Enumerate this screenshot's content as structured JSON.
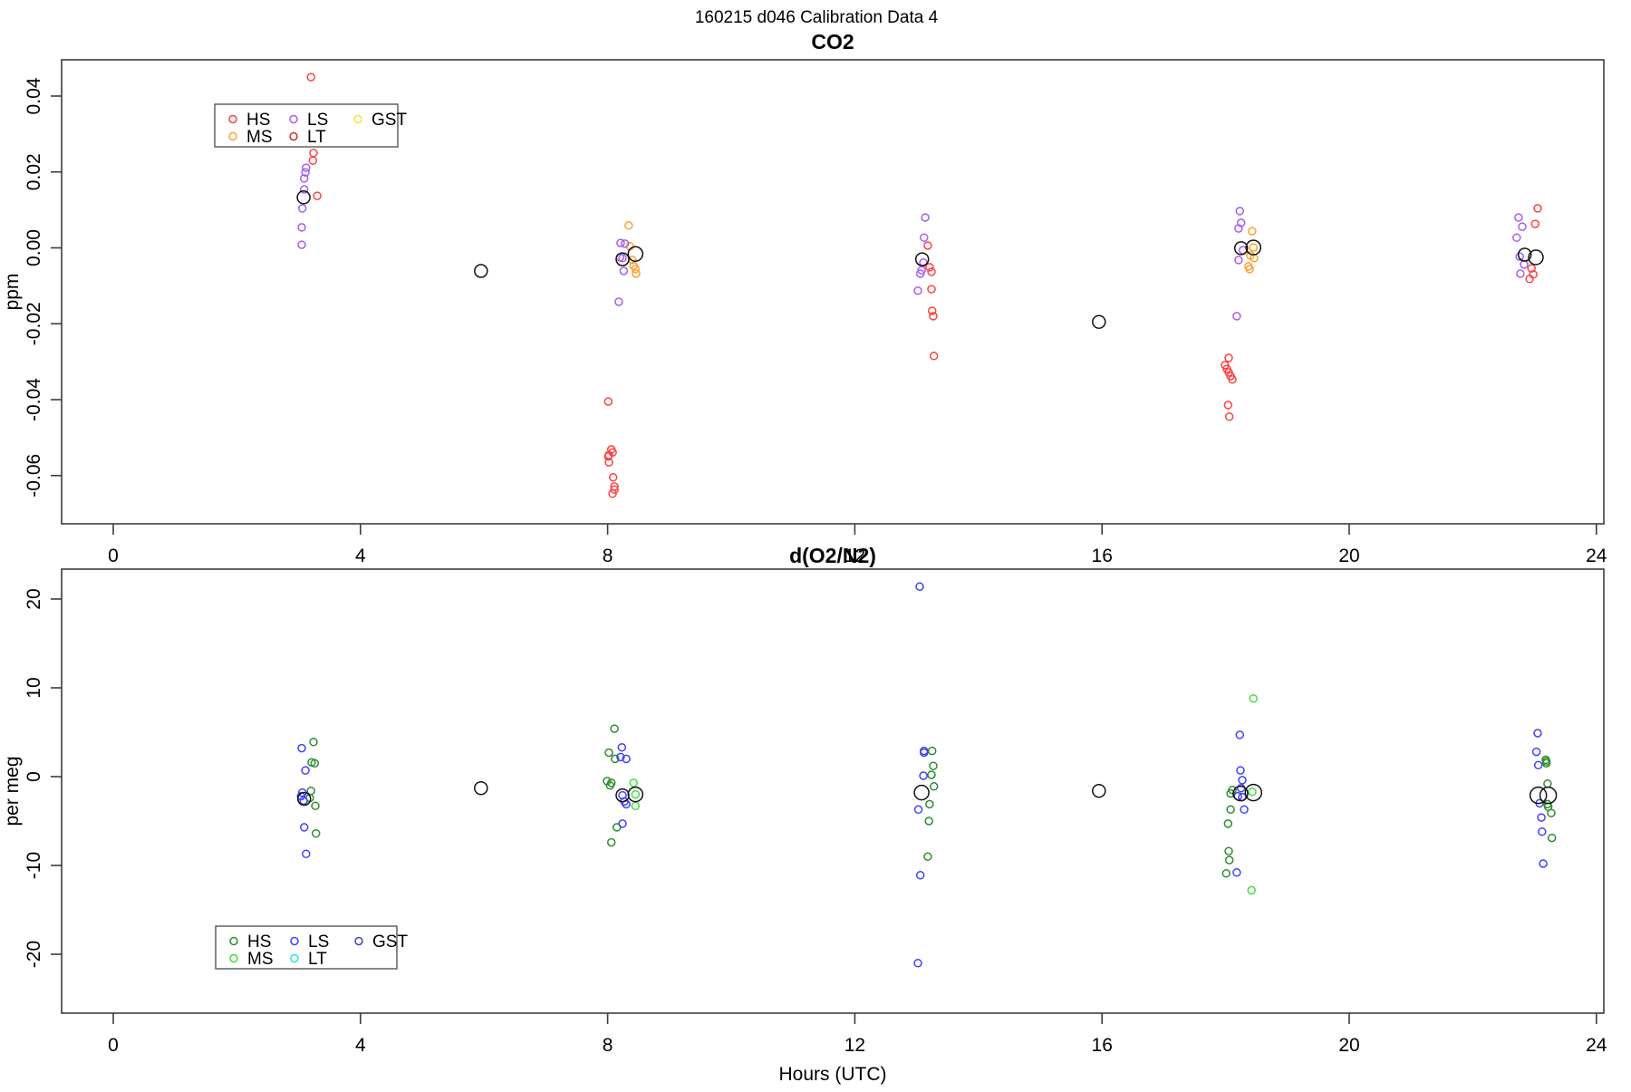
{
  "figure": {
    "title": "160215   d046   Calibration Data 4",
    "xlabel": "Hours (UTC)"
  },
  "x_axis": {
    "ticks": [
      {
        "value": 0,
        "label": "0"
      },
      {
        "value": 4,
        "label": "4"
      },
      {
        "value": 8,
        "label": "8"
      },
      {
        "value": 12,
        "label": "12"
      },
      {
        "value": 16,
        "label": "16"
      },
      {
        "value": 20,
        "label": "20"
      },
      {
        "value": 24,
        "label": "24"
      }
    ]
  },
  "chart_data": [
    {
      "type": "scatter",
      "title": "CO2",
      "ylabel": "ppm",
      "xlabel": "Hours (UTC)",
      "xlim": [
        -1,
        25
      ],
      "ylim": [
        -0.072,
        0.047
      ],
      "grid": false,
      "y_ticks": [
        {
          "value": 0.04,
          "label": "0.04"
        },
        {
          "value": 0.02,
          "label": "0.02"
        },
        {
          "value": 0.0,
          "label": "0.00"
        },
        {
          "value": -0.02,
          "label": "-0.02"
        },
        {
          "value": -0.04,
          "label": "-0.04"
        },
        {
          "value": -0.06,
          "label": "-0.06"
        }
      ],
      "legend": {
        "position": "top-left",
        "items": [
          {
            "name": "HS",
            "color": "#ff4040"
          },
          {
            "name": "MS",
            "color": "#ffa030"
          },
          {
            "name": "LS",
            "color": "#a85cf0"
          },
          {
            "name": "LT",
            "color": "#c23030"
          },
          {
            "name": "GST",
            "color": "#f2e43c"
          }
        ]
      },
      "series": [
        {
          "name": "HS",
          "color": "#ff4040",
          "points": [
            [
              3.2,
              0.045
            ],
            [
              3.24,
              0.025
            ],
            [
              3.23,
              0.023
            ],
            [
              3.3,
              0.0137
            ],
            [
              8.01,
              -0.0405
            ],
            [
              8.06,
              -0.0531
            ],
            [
              8.08,
              -0.0539
            ],
            [
              8.02,
              -0.0546
            ],
            [
              8.01,
              -0.055
            ],
            [
              8.02,
              -0.0565
            ],
            [
              8.09,
              -0.0605
            ],
            [
              8.11,
              -0.0629
            ],
            [
              8.11,
              -0.0637
            ],
            [
              8.08,
              -0.0648
            ],
            [
              13.18,
              0.0006
            ],
            [
              13.21,
              -0.0051
            ],
            [
              13.24,
              -0.0063
            ],
            [
              13.24,
              -0.0109
            ],
            [
              13.25,
              -0.0166
            ],
            [
              13.27,
              -0.018
            ],
            [
              13.28,
              -0.0285
            ],
            [
              18.05,
              -0.029
            ],
            [
              17.99,
              -0.0309
            ],
            [
              18.02,
              -0.0319
            ],
            [
              18.05,
              -0.0328
            ],
            [
              18.08,
              -0.0338
            ],
            [
              18.11,
              -0.0347
            ],
            [
              18.04,
              -0.0414
            ],
            [
              18.06,
              -0.0445
            ],
            [
              23.05,
              0.0104
            ],
            [
              23.01,
              0.0063
            ],
            [
              22.95,
              -0.0054
            ],
            [
              22.98,
              -0.007
            ],
            [
              22.92,
              -0.0082
            ]
          ]
        },
        {
          "name": "MS",
          "color": "#ffa030",
          "points": [
            [
              8.34,
              0.0059
            ],
            [
              8.36,
              0.0004
            ],
            [
              8.4,
              -0.0032
            ],
            [
              8.42,
              -0.0047
            ],
            [
              8.45,
              -0.0056
            ],
            [
              8.46,
              -0.0068
            ],
            [
              18.43,
              0.0044
            ],
            [
              18.45,
              0.0001
            ],
            [
              18.4,
              -0.002
            ],
            [
              18.46,
              -0.0027
            ],
            [
              18.37,
              -0.0049
            ],
            [
              18.39,
              -0.0056
            ]
          ]
        },
        {
          "name": "LS",
          "color": "#a85cf0",
          "points": [
            [
              3.12,
              0.0211
            ],
            [
              3.11,
              0.0199
            ],
            [
              3.09,
              0.0183
            ],
            [
              3.09,
              0.0154
            ],
            [
              3.06,
              0.0104
            ],
            [
              3.05,
              0.0054
            ],
            [
              3.05,
              0.0008
            ],
            [
              8.21,
              0.0013
            ],
            [
              8.28,
              0.0011
            ],
            [
              8.2,
              -0.0025
            ],
            [
              8.24,
              -0.0027
            ],
            [
              8.26,
              -0.0061
            ],
            [
              8.18,
              -0.0142
            ],
            [
              13.14,
              0.008
            ],
            [
              13.12,
              0.0027
            ],
            [
              13.11,
              -0.0039
            ],
            [
              13.08,
              -0.0059
            ],
            [
              13.06,
              -0.0068
            ],
            [
              13.02,
              -0.0113
            ],
            [
              18.23,
              0.0097
            ],
            [
              18.25,
              0.0066
            ],
            [
              18.21,
              0.0051
            ],
            [
              18.28,
              -0.0006
            ],
            [
              18.21,
              -0.0032
            ],
            [
              18.18,
              -0.018
            ],
            [
              22.74,
              0.008
            ],
            [
              22.8,
              0.0056
            ],
            [
              22.71,
              0.0027
            ],
            [
              22.76,
              -0.0023
            ],
            [
              22.83,
              -0.0044
            ],
            [
              22.77,
              -0.0068
            ]
          ]
        },
        {
          "name": "LT",
          "color": "#c23030",
          "points": []
        },
        {
          "name": "GST",
          "color": "#f2e43c",
          "points": []
        }
      ],
      "means": {
        "color": "#111111",
        "points": [
          [
            3.08,
            0.0133,
            7
          ],
          [
            5.95,
            -0.0061,
            7
          ],
          [
            8.24,
            -0.003,
            7
          ],
          [
            8.45,
            -0.0016,
            8
          ],
          [
            13.09,
            -0.003,
            7
          ],
          [
            15.95,
            -0.0195,
            7
          ],
          [
            18.25,
            -0.0001,
            7
          ],
          [
            18.45,
            0.0001,
            8
          ],
          [
            22.84,
            -0.0018,
            7
          ],
          [
            23.02,
            -0.0025,
            8
          ]
        ]
      }
    },
    {
      "type": "scatter",
      "title": "d(O2/N2)",
      "ylabel": "per meg",
      "xlabel": "Hours (UTC)",
      "xlim": [
        -1,
        25
      ],
      "ylim": [
        -23,
        23
      ],
      "grid": false,
      "y_ticks": [
        {
          "value": 20,
          "label": "20"
        },
        {
          "value": 10,
          "label": "10"
        },
        {
          "value": 0,
          "label": "0"
        },
        {
          "value": -10,
          "label": "-10"
        },
        {
          "value": -20,
          "label": "-20"
        }
      ],
      "legend": {
        "position": "bottom-left",
        "items": [
          {
            "name": "HS",
            "color": "#2e8b2e"
          },
          {
            "name": "MS",
            "color": "#3fe03f"
          },
          {
            "name": "LS",
            "color": "#4040ff"
          },
          {
            "name": "LT",
            "color": "#30e0e0"
          },
          {
            "name": "GST",
            "color": "#4444bb"
          }
        ]
      },
      "series": [
        {
          "name": "HS",
          "color": "#2e8b2e",
          "points": [
            [
              3.24,
              3.9
            ],
            [
              3.21,
              1.6
            ],
            [
              3.26,
              1.5
            ],
            [
              3.2,
              -1.6
            ],
            [
              3.18,
              -2.4
            ],
            [
              3.27,
              -3.3
            ],
            [
              3.28,
              -6.4
            ],
            [
              8.11,
              5.4
            ],
            [
              8.02,
              2.7
            ],
            [
              8.12,
              2.0
            ],
            [
              7.99,
              -0.5
            ],
            [
              8.06,
              -0.7
            ],
            [
              8.04,
              -1.0
            ],
            [
              8.15,
              -5.7
            ],
            [
              8.06,
              -7.4
            ],
            [
              13.25,
              2.9
            ],
            [
              13.27,
              1.2
            ],
            [
              13.24,
              0.2
            ],
            [
              13.28,
              -1.1
            ],
            [
              13.21,
              -3.1
            ],
            [
              13.2,
              -5.0
            ],
            [
              13.18,
              -9.0
            ],
            [
              18.11,
              -1.5
            ],
            [
              18.08,
              -1.9
            ],
            [
              18.08,
              -3.7
            ],
            [
              18.04,
              -5.3
            ],
            [
              18.05,
              -8.4
            ],
            [
              18.06,
              -9.4
            ],
            [
              18.01,
              -10.9
            ],
            [
              23.18,
              1.9
            ],
            [
              23.19,
              1.7
            ],
            [
              23.19,
              1.5
            ],
            [
              23.21,
              -0.8
            ],
            [
              23.21,
              -3.1
            ],
            [
              23.22,
              -3.4
            ],
            [
              23.27,
              -4.1
            ],
            [
              23.28,
              -6.9
            ]
          ]
        },
        {
          "name": "MS",
          "color": "#3fe03f",
          "points": [
            [
              8.42,
              -0.7
            ],
            [
              8.45,
              -2.0
            ],
            [
              8.45,
              -3.3
            ],
            [
              18.45,
              8.8
            ],
            [
              18.43,
              -1.7
            ],
            [
              18.42,
              -12.8
            ]
          ]
        },
        {
          "name": "LS",
          "color": "#4040ff",
          "points": [
            [
              3.05,
              3.2
            ],
            [
              3.11,
              0.7
            ],
            [
              3.06,
              -1.8
            ],
            [
              3.04,
              -2.2
            ],
            [
              3.08,
              -2.7
            ],
            [
              3.09,
              -5.7
            ],
            [
              3.12,
              -8.7
            ],
            [
              8.23,
              3.3
            ],
            [
              8.21,
              2.2
            ],
            [
              8.3,
              2.0
            ],
            [
              8.24,
              -2.1
            ],
            [
              8.27,
              -2.8
            ],
            [
              8.3,
              -3.1
            ],
            [
              8.24,
              -5.3
            ],
            [
              13.05,
              21.4
            ],
            [
              13.12,
              2.9
            ],
            [
              13.12,
              2.7
            ],
            [
              13.11,
              0.1
            ],
            [
              13.03,
              -3.7
            ],
            [
              13.06,
              -11.1
            ],
            [
              13.02,
              -21.0
            ],
            [
              18.23,
              4.7
            ],
            [
              18.24,
              0.7
            ],
            [
              18.27,
              -0.4
            ],
            [
              18.25,
              -1.3
            ],
            [
              18.2,
              -2.2
            ],
            [
              18.27,
              -2.3
            ],
            [
              18.3,
              -3.7
            ],
            [
              18.18,
              -10.8
            ],
            [
              23.05,
              4.9
            ],
            [
              23.03,
              2.8
            ],
            [
              23.06,
              1.3
            ],
            [
              23.08,
              -3.0
            ],
            [
              23.11,
              -4.6
            ],
            [
              23.12,
              -6.2
            ],
            [
              23.14,
              -9.8
            ]
          ]
        },
        {
          "name": "LT",
          "color": "#30e0e0",
          "points": []
        },
        {
          "name": "GST",
          "color": "#4444bb",
          "points": []
        }
      ],
      "means": {
        "color": "#111111",
        "points": [
          [
            3.09,
            -2.5,
            7
          ],
          [
            5.95,
            -1.3,
            7
          ],
          [
            8.24,
            -2.1,
            7
          ],
          [
            8.45,
            -2.0,
            8
          ],
          [
            13.08,
            -1.8,
            8
          ],
          [
            15.95,
            -1.6,
            7
          ],
          [
            18.24,
            -1.9,
            8
          ],
          [
            18.45,
            -1.8,
            9
          ],
          [
            23.06,
            -2.1,
            9
          ],
          [
            23.22,
            -2.1,
            9
          ]
        ]
      }
    }
  ]
}
